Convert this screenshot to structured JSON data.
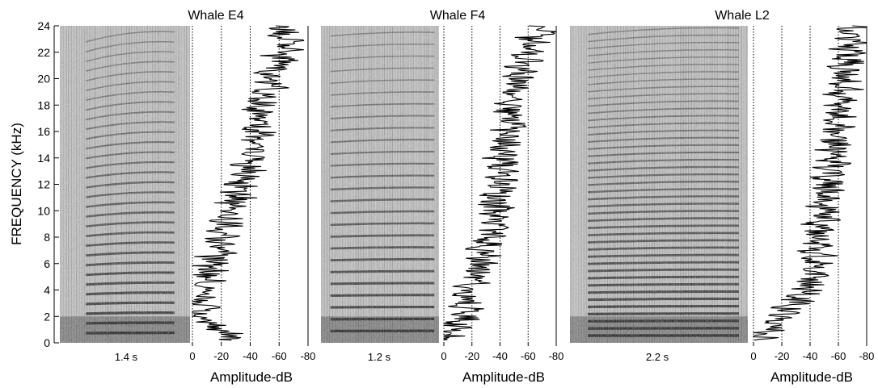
{
  "chart_data": {
    "type": "spectrogram-with-amplitude-spectra",
    "y_axis": {
      "label": "FREQUENCY (kHz)",
      "range": [
        0,
        24
      ],
      "ticks": [
        "0",
        "2",
        "4",
        "6",
        "8",
        "10",
        "12",
        "14",
        "16",
        "18",
        "20",
        "22",
        "24"
      ],
      "tick_values": [
        0,
        2,
        4,
        6,
        8,
        10,
        12,
        14,
        16,
        18,
        20,
        22,
        24
      ]
    },
    "amplitude_axis": {
      "label": "Amplitude-dB",
      "range": [
        0,
        -80
      ],
      "ticks": [
        "0",
        "-20",
        "-40",
        "-60",
        "-80"
      ],
      "tick_values": [
        0,
        -20,
        -40,
        -60,
        -80
      ],
      "gridlines_db": [
        -20,
        -40,
        -60
      ]
    },
    "panels": [
      {
        "title": "Whale E4",
        "duration_label": "1.4 s",
        "harmonic_spacing_khz": 0.75,
        "spectrum_db": [
          [
            0.5,
            -28
          ],
          [
            2,
            -4
          ],
          [
            4,
            -8
          ],
          [
            6,
            -14
          ],
          [
            8,
            -20
          ],
          [
            10,
            -27
          ],
          [
            12,
            -36
          ],
          [
            14,
            -42
          ],
          [
            16,
            -45
          ],
          [
            18,
            -48
          ],
          [
            20,
            -55
          ],
          [
            22,
            -62
          ],
          [
            23.5,
            -64
          ]
        ]
      },
      {
        "title": "Whale F4",
        "duration_label": "1.2 s",
        "harmonic_spacing_khz": 0.9,
        "spectrum_db": [
          [
            0.5,
            -3
          ],
          [
            2,
            -14
          ],
          [
            4,
            -18
          ],
          [
            6,
            -26
          ],
          [
            8,
            -32
          ],
          [
            10,
            -36
          ],
          [
            12,
            -40
          ],
          [
            14,
            -42
          ],
          [
            16,
            -46
          ],
          [
            18,
            -48
          ],
          [
            20,
            -52
          ],
          [
            22,
            -58
          ],
          [
            23.5,
            -68
          ]
        ]
      },
      {
        "title": "Whale L2",
        "duration_label": "2.2 s",
        "harmonic_spacing_khz": 0.55,
        "spectrum_db": [
          [
            0.5,
            -8
          ],
          [
            2,
            -18
          ],
          [
            4,
            -38
          ],
          [
            6,
            -45
          ],
          [
            8,
            -45
          ],
          [
            10,
            -50
          ],
          [
            12,
            -53
          ],
          [
            14,
            -57
          ],
          [
            16,
            -60
          ],
          [
            18,
            -62
          ],
          [
            20,
            -65
          ],
          [
            22,
            -66
          ],
          [
            23.5,
            -70
          ]
        ]
      }
    ]
  }
}
